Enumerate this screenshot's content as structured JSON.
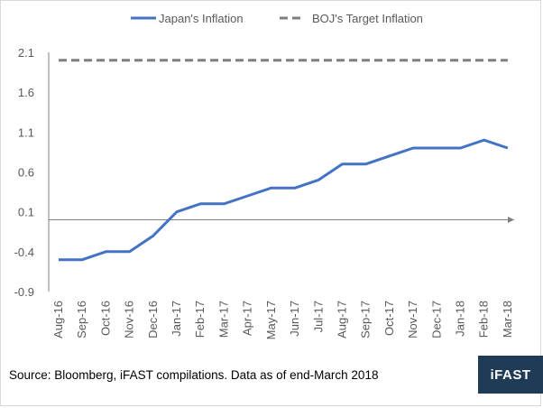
{
  "chart_data": {
    "type": "line",
    "title": "",
    "xlabel": "",
    "ylabel": "",
    "categories": [
      "Aug-16",
      "Sep-16",
      "Oct-16",
      "Nov-16",
      "Dec-16",
      "Jan-17",
      "Feb-17",
      "Mar-17",
      "Apr-17",
      "May-17",
      "Jun-17",
      "Jul-17",
      "Aug-17",
      "Sep-17",
      "Oct-17",
      "Nov-17",
      "Dec-17",
      "Jan-18",
      "Feb-18",
      "Mar-18"
    ],
    "series": [
      {
        "name": "Japan's Inflation",
        "color": "#4472c4",
        "style": "solid",
        "values": [
          -0.5,
          -0.5,
          -0.4,
          -0.4,
          -0.2,
          0.1,
          0.2,
          0.2,
          0.3,
          0.4,
          0.4,
          0.5,
          0.7,
          0.7,
          0.8,
          0.9,
          0.9,
          0.9,
          1.0,
          0.9
        ]
      },
      {
        "name": "BOJ's Target Inflation",
        "color": "#7f7f7f",
        "style": "dashed",
        "values": [
          2,
          2,
          2,
          2,
          2,
          2,
          2,
          2,
          2,
          2,
          2,
          2,
          2,
          2,
          2,
          2,
          2,
          2,
          2,
          2
        ]
      }
    ],
    "ylim": [
      -0.9,
      2.1
    ],
    "yticks": [
      "2.1",
      "1.6",
      "1.1",
      "0.6",
      "0.1",
      "-0.4",
      "-0.9"
    ],
    "ytick_values": [
      2.1,
      1.6,
      1.1,
      0.6,
      0.1,
      -0.4,
      -0.9
    ],
    "legend_position": "top",
    "grid": false
  },
  "footer": {
    "source": "Source: Bloomberg, iFAST compilations. Data as of end-March 2018",
    "logo_text": "iFAST",
    "bg_color": "#ffffff"
  }
}
